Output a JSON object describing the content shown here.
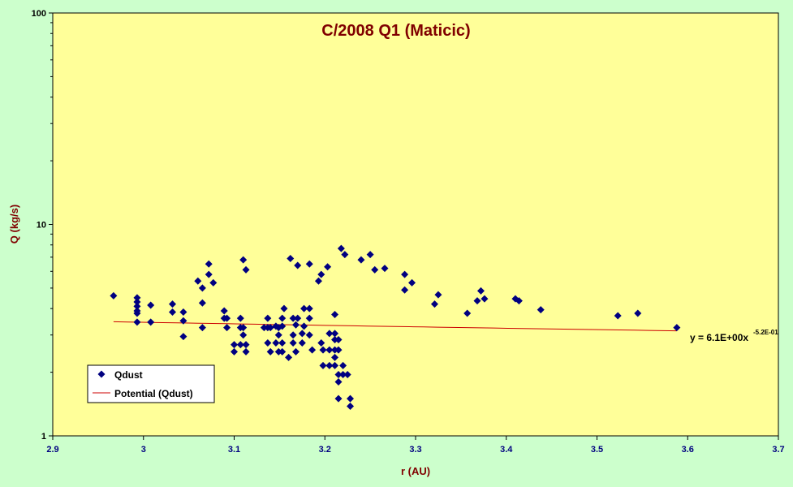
{
  "chart_data": {
    "type": "scatter",
    "title": "C/2008 Q1 (Maticic)",
    "xlabel": "r (AU)",
    "ylabel": "Q (kg/s)",
    "xlim": [
      2.9,
      3.7
    ],
    "ylim": [
      1,
      100
    ],
    "yscale": "log",
    "x_ticks": [
      "2.9",
      "3",
      "3.1",
      "3.2",
      "3.3",
      "3.4",
      "3.5",
      "3.6",
      "3.7"
    ],
    "y_ticks": [
      "1",
      "10",
      "100"
    ],
    "grid": false,
    "legend_position": "bottom-left",
    "colors": {
      "plot_background": "#ffff99",
      "page_background": "#ccffcc",
      "marker": "#000080",
      "trendline": "#cc0000",
      "title": "#800000"
    },
    "series": [
      {
        "name": "Qdust",
        "marker": "diamond",
        "points": [
          [
            2.967,
            4.6
          ],
          [
            2.993,
            4.5
          ],
          [
            2.993,
            4.3
          ],
          [
            2.993,
            4.1
          ],
          [
            2.993,
            3.9
          ],
          [
            2.993,
            3.8
          ],
          [
            2.993,
            3.45
          ],
          [
            3.008,
            4.15
          ],
          [
            3.008,
            3.45
          ],
          [
            3.032,
            4.2
          ],
          [
            3.032,
            3.85
          ],
          [
            3.044,
            3.85
          ],
          [
            3.044,
            3.5
          ],
          [
            3.044,
            2.95
          ],
          [
            3.06,
            5.4
          ],
          [
            3.065,
            5.0
          ],
          [
            3.065,
            4.25
          ],
          [
            3.065,
            3.25
          ],
          [
            3.072,
            6.5
          ],
          [
            3.072,
            5.8
          ],
          [
            3.077,
            5.3
          ],
          [
            3.089,
            3.9
          ],
          [
            3.089,
            3.6
          ],
          [
            3.092,
            3.6
          ],
          [
            3.092,
            3.25
          ],
          [
            3.1,
            2.7
          ],
          [
            3.1,
            2.5
          ],
          [
            3.107,
            3.6
          ],
          [
            3.107,
            3.25
          ],
          [
            3.107,
            2.7
          ],
          [
            3.11,
            6.8
          ],
          [
            3.11,
            3.25
          ],
          [
            3.11,
            3.0
          ],
          [
            3.113,
            6.1
          ],
          [
            3.113,
            2.7
          ],
          [
            3.113,
            2.5
          ],
          [
            3.133,
            3.25
          ],
          [
            3.137,
            3.6
          ],
          [
            3.137,
            3.25
          ],
          [
            3.137,
            2.75
          ],
          [
            3.14,
            2.5
          ],
          [
            3.14,
            3.25
          ],
          [
            3.146,
            3.3
          ],
          [
            3.146,
            2.75
          ],
          [
            3.149,
            3.25
          ],
          [
            3.149,
            3.0
          ],
          [
            3.149,
            2.5
          ],
          [
            3.153,
            3.6
          ],
          [
            3.153,
            3.3
          ],
          [
            3.153,
            2.75
          ],
          [
            3.153,
            2.5
          ],
          [
            3.155,
            4.0
          ],
          [
            3.16,
            2.35
          ],
          [
            3.162,
            6.9
          ],
          [
            3.165,
            3.6
          ],
          [
            3.165,
            3.0
          ],
          [
            3.165,
            2.75
          ],
          [
            3.168,
            2.5
          ],
          [
            3.168,
            3.35
          ],
          [
            3.17,
            6.4
          ],
          [
            3.17,
            3.6
          ],
          [
            3.175,
            3.05
          ],
          [
            3.175,
            2.75
          ],
          [
            3.177,
            4.0
          ],
          [
            3.177,
            3.3
          ],
          [
            3.183,
            6.5
          ],
          [
            3.183,
            4.0
          ],
          [
            3.183,
            3.6
          ],
          [
            3.183,
            3.0
          ],
          [
            3.186,
            2.55
          ],
          [
            3.193,
            5.4
          ],
          [
            3.196,
            5.8
          ],
          [
            3.196,
            2.75
          ],
          [
            3.198,
            2.55
          ],
          [
            3.198,
            2.15
          ],
          [
            3.203,
            6.3
          ],
          [
            3.205,
            3.05
          ],
          [
            3.205,
            2.55
          ],
          [
            3.205,
            2.15
          ],
          [
            3.211,
            3.75
          ],
          [
            3.211,
            3.05
          ],
          [
            3.211,
            2.85
          ],
          [
            3.211,
            2.55
          ],
          [
            3.211,
            2.35
          ],
          [
            3.211,
            2.15
          ],
          [
            3.215,
            2.85
          ],
          [
            3.215,
            2.55
          ],
          [
            3.215,
            1.95
          ],
          [
            3.215,
            1.8
          ],
          [
            3.215,
            1.5
          ],
          [
            3.218,
            7.7
          ],
          [
            3.22,
            2.15
          ],
          [
            3.22,
            1.95
          ],
          [
            3.222,
            7.2
          ],
          [
            3.225,
            1.95
          ],
          [
            3.228,
            1.5
          ],
          [
            3.228,
            1.38
          ],
          [
            3.24,
            6.8
          ],
          [
            3.25,
            7.2
          ],
          [
            3.255,
            6.1
          ],
          [
            3.266,
            6.2
          ],
          [
            3.288,
            5.8
          ],
          [
            3.288,
            4.9
          ],
          [
            3.296,
            5.3
          ],
          [
            3.321,
            4.2
          ],
          [
            3.325,
            4.65
          ],
          [
            3.357,
            3.8
          ],
          [
            3.368,
            4.35
          ],
          [
            3.372,
            4.85
          ],
          [
            3.376,
            4.45
          ],
          [
            3.41,
            4.45
          ],
          [
            3.414,
            4.35
          ],
          [
            3.438,
            3.95
          ],
          [
            3.523,
            3.7
          ],
          [
            3.545,
            3.8
          ],
          [
            3.588,
            3.25
          ]
        ]
      },
      {
        "name": "Potential (Qdust)",
        "type": "power_trendline",
        "x_range": [
          2.967,
          3.588
        ]
      }
    ],
    "trendline_equation": {
      "base": "y = 6.1E+00x",
      "exponent": "-5.2E-01",
      "coefficient": 6.1,
      "power": -0.52
    }
  }
}
